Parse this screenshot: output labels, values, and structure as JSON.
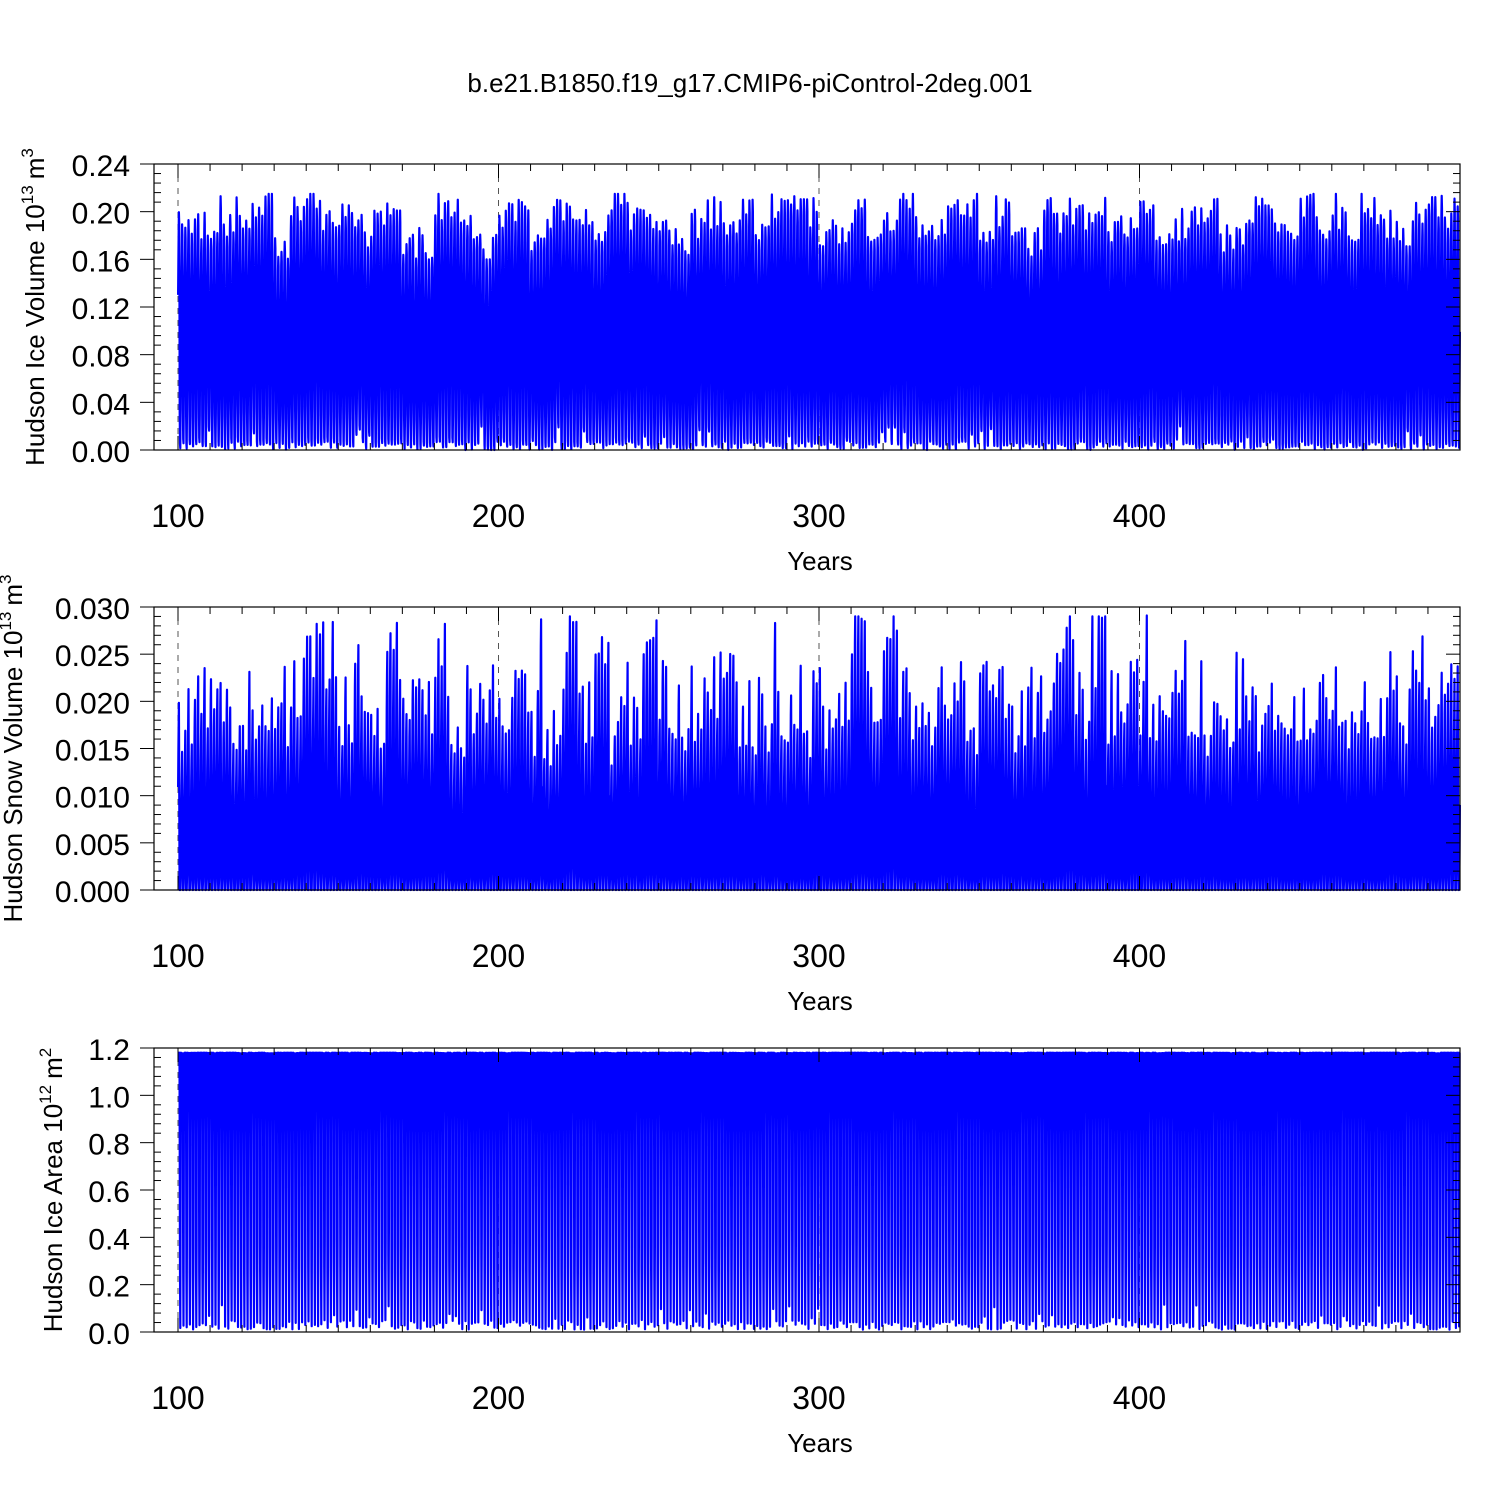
{
  "figure": {
    "title": "b.e21.B1850.f19_g17.CMIP6-piControl-2deg.001"
  },
  "colors": {
    "series": "#0000ff",
    "axis": "#000000",
    "grid": "#555555",
    "background": "#ffffff"
  },
  "chart_data": [
    {
      "type": "line",
      "title": "",
      "xlabel": "Years",
      "ylabel": "Hudson Ice Volume 10",
      "ylabel_exponent": "13",
      "ylabel_unit": "m",
      "ylabel_unit_exponent": "3",
      "xlim": [
        100,
        499
      ],
      "ylim": [
        0,
        0.24
      ],
      "xticks": [
        100,
        200,
        300,
        400
      ],
      "xtick_labels": [
        "100",
        "200",
        "300",
        "400"
      ],
      "yticks": [
        0,
        0.04,
        0.08,
        0.12,
        0.16,
        0.2,
        0.24
      ],
      "ytick_labels": [
        "0.00",
        "0.04",
        "0.08",
        "0.12",
        "0.16",
        "0.20",
        "0.24"
      ],
      "grid": "dashed vertical lines at x = 100, 200, 300, 400",
      "series": [
        {
          "color": "#0000ff",
          "resolution": "monthly",
          "x_start": 100,
          "x_end": 499,
          "annual_max_range": [
            0.16,
            0.215
          ],
          "annual_min_range": [
            0.0,
            0.02
          ],
          "annual_max_samples": [
            0.195,
            0.19,
            0.18,
            0.185,
            0.2,
            0.21,
            0.175,
            0.2,
            0.215,
            0.195,
            0.2,
            0.185,
            0.19,
            0.2,
            0.17,
            0.175,
            0.205,
            0.2,
            0.185,
            0.17,
            0.195,
            0.205,
            0.18,
            0.2,
            0.195,
            0.19,
            0.185,
            0.21,
            0.195,
            0.2,
            0.185,
            0.175,
            0.19,
            0.2,
            0.185,
            0.2,
            0.19,
            0.205,
            0.2,
            0.2,
            0.185,
            0.18,
            0.2,
            0.19,
            0.195,
            0.205,
            0.185,
            0.19,
            0.2,
            0.21,
            0.185,
            0.2,
            0.18,
            0.175,
            0.2,
            0.19,
            0.195,
            0.2,
            0.185,
            0.19,
            0.2,
            0.18,
            0.19,
            0.2,
            0.205,
            0.18,
            0.185,
            0.2,
            0.195,
            0.19,
            0.205,
            0.19,
            0.2,
            0.185,
            0.2,
            0.19,
            0.185,
            0.2,
            0.21,
            0.195
          ],
          "peak_maxima": [
            {
              "x": 113,
              "y": 0.213
            },
            {
              "x": 118,
              "y": 0.212
            },
            {
              "x": 128,
              "y": 0.215
            },
            {
              "x": 207,
              "y": 0.208
            },
            {
              "x": 292,
              "y": 0.213
            },
            {
              "x": 355,
              "y": 0.213
            },
            {
              "x": 378,
              "y": 0.211
            },
            {
              "x": 461,
              "y": 0.215
            },
            {
              "x": 469,
              "y": 0.215
            },
            {
              "x": 498,
              "y": 0.211
            }
          ]
        }
      ]
    },
    {
      "type": "line",
      "title": "",
      "xlabel": "Years",
      "ylabel": "Hudson Snow Volume 10",
      "ylabel_exponent": "13",
      "ylabel_unit": "m",
      "ylabel_unit_exponent": "3",
      "xlim": [
        100,
        499
      ],
      "ylim": [
        0,
        0.03
      ],
      "xticks": [
        100,
        200,
        300,
        400
      ],
      "xtick_labels": [
        "100",
        "200",
        "300",
        "400"
      ],
      "yticks": [
        0,
        0.005,
        0.01,
        0.015,
        0.02,
        0.025,
        0.03
      ],
      "ytick_labels": [
        "0.000",
        "0.005",
        "0.010",
        "0.015",
        "0.020",
        "0.025",
        "0.030"
      ],
      "grid": "dashed vertical lines at x = 100, 200, 300, 400",
      "series": [
        {
          "color": "#0000ff",
          "resolution": "monthly",
          "x_start": 100,
          "x_end": 499,
          "annual_max_range": [
            0.01,
            0.029
          ],
          "annual_min_range": [
            0.0,
            0.0
          ],
          "annual_max_samples": [
            0.018,
            0.02,
            0.021,
            0.017,
            0.019,
            0.022,
            0.02,
            0.021,
            0.024,
            0.025,
            0.02,
            0.022,
            0.019,
            0.025,
            0.021,
            0.02,
            0.025,
            0.018,
            0.021,
            0.02,
            0.017,
            0.021,
            0.018,
            0.017,
            0.025,
            0.02,
            0.026,
            0.018,
            0.02,
            0.0287,
            0.021,
            0.019,
            0.02,
            0.022,
            0.021,
            0.02,
            0.019,
            0.021,
            0.02,
            0.019,
            0.02,
            0.021,
            0.0283,
            0.021,
            0.0253,
            0.02,
            0.019,
            0.02,
            0.021,
            0.018,
            0.02,
            0.021,
            0.019,
            0.02,
            0.021,
            0.0291,
            0.02,
            0.0264,
            0.02,
            0.021,
            0.019,
            0.02,
            0.021,
            0.02,
            0.019,
            0.02,
            0.021,
            0.018,
            0.02,
            0.019,
            0.021,
            0.02,
            0.022,
            0.019,
            0.02,
            0.021,
            0.019,
            0.0248,
            0.02,
            0.022
          ],
          "peak_maxima": [
            {
              "x": 213,
              "y": 0.0287
            },
            {
              "x": 286,
              "y": 0.0283
            },
            {
              "x": 402,
              "y": 0.0291
            },
            {
              "x": 414,
              "y": 0.0264
            }
          ]
        }
      ]
    },
    {
      "type": "line",
      "title": "",
      "xlabel": "Years",
      "ylabel": "Hudson Ice Area 10",
      "ylabel_exponent": "12",
      "ylabel_unit": "m",
      "ylabel_unit_exponent": "2",
      "xlim": [
        100,
        499
      ],
      "ylim": [
        0,
        1.2
      ],
      "xticks": [
        100,
        200,
        300,
        400
      ],
      "xtick_labels": [
        "100",
        "200",
        "300",
        "400"
      ],
      "yticks": [
        0,
        0.2,
        0.4,
        0.6,
        0.8,
        1.0,
        1.2
      ],
      "ytick_labels": [
        "0.0",
        "0.2",
        "0.4",
        "0.6",
        "0.8",
        "1.0",
        "1.2"
      ],
      "grid": "dashed vertical lines at x = 100, 200, 300, 400",
      "series": [
        {
          "color": "#0000ff",
          "resolution": "monthly",
          "x_start": 100,
          "x_end": 499,
          "annual_max_range": [
            1.17,
            1.18
          ],
          "annual_min_range": [
            0.01,
            0.12
          ],
          "annual_max_samples": [
            1.18
          ],
          "peak_maxima": []
        }
      ]
    }
  ]
}
